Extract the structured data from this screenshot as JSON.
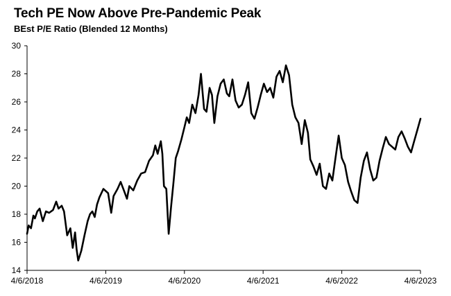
{
  "header": {
    "title": "Tech PE Now Above Pre-Pandemic Peak",
    "subtitle": "BEst P/E Ratio (Blended 12 Months)"
  },
  "chart_data": {
    "type": "line",
    "title": "Tech PE Now Above Pre-Pandemic Peak",
    "subtitle": "BEst P/E Ratio (Blended 12 Months)",
    "xlabel": "",
    "ylabel": "",
    "xlim": [
      2018.0,
      2023.0
    ],
    "ylim": [
      14,
      30
    ],
    "yticks": [
      14,
      16,
      18,
      20,
      22,
      24,
      26,
      28,
      30
    ],
    "xticks": [
      {
        "value": 2018.0,
        "label": "4/6/2018"
      },
      {
        "value": 2019.0,
        "label": "4/6/2019"
      },
      {
        "value": 2020.0,
        "label": "4/6/2020"
      },
      {
        "value": 2021.0,
        "label": "4/6/2021"
      },
      {
        "value": 2022.0,
        "label": "4/6/2022"
      },
      {
        "value": 2023.0,
        "label": "4/6/2023"
      }
    ],
    "grid": false,
    "legend": "none",
    "colors": {
      "line": "#000000",
      "axis": "#000000"
    },
    "series": [
      {
        "color": "#000000",
        "points": [
          [
            2018.0,
            16.6
          ],
          [
            2018.02,
            17.2
          ],
          [
            2018.05,
            17.0
          ],
          [
            2018.08,
            17.9
          ],
          [
            2018.1,
            17.7
          ],
          [
            2018.13,
            18.2
          ],
          [
            2018.16,
            18.4
          ],
          [
            2018.2,
            17.5
          ],
          [
            2018.24,
            18.2
          ],
          [
            2018.28,
            18.1
          ],
          [
            2018.33,
            18.3
          ],
          [
            2018.37,
            18.9
          ],
          [
            2018.4,
            18.4
          ],
          [
            2018.44,
            18.6
          ],
          [
            2018.47,
            18.2
          ],
          [
            2018.51,
            16.5
          ],
          [
            2018.55,
            17.0
          ],
          [
            2018.58,
            15.6
          ],
          [
            2018.61,
            16.7
          ],
          [
            2018.63,
            15.5
          ],
          [
            2018.65,
            14.7
          ],
          [
            2018.69,
            15.4
          ],
          [
            2018.73,
            16.5
          ],
          [
            2018.77,
            17.5
          ],
          [
            2018.8,
            18.0
          ],
          [
            2018.83,
            18.2
          ],
          [
            2018.86,
            17.8
          ],
          [
            2018.89,
            18.7
          ],
          [
            2018.92,
            19.2
          ],
          [
            2018.97,
            19.8
          ],
          [
            2019.03,
            19.5
          ],
          [
            2019.07,
            18.1
          ],
          [
            2019.1,
            19.3
          ],
          [
            2019.15,
            19.8
          ],
          [
            2019.19,
            20.3
          ],
          [
            2019.23,
            19.7
          ],
          [
            2019.27,
            19.1
          ],
          [
            2019.3,
            20.0
          ],
          [
            2019.35,
            19.7
          ],
          [
            2019.4,
            20.4
          ],
          [
            2019.45,
            20.9
          ],
          [
            2019.5,
            21.0
          ],
          [
            2019.55,
            21.8
          ],
          [
            2019.6,
            22.2
          ],
          [
            2019.63,
            22.9
          ],
          [
            2019.66,
            22.3
          ],
          [
            2019.7,
            23.2
          ],
          [
            2019.72,
            22.3
          ],
          [
            2019.74,
            20.0
          ],
          [
            2019.77,
            19.8
          ],
          [
            2019.8,
            16.6
          ],
          [
            2019.83,
            18.5
          ],
          [
            2019.86,
            20.2
          ],
          [
            2019.89,
            22.0
          ],
          [
            2019.92,
            22.5
          ],
          [
            2019.96,
            23.3
          ],
          [
            2020.0,
            24.2
          ],
          [
            2020.03,
            24.9
          ],
          [
            2020.06,
            24.5
          ],
          [
            2020.1,
            25.8
          ],
          [
            2020.14,
            25.2
          ],
          [
            2020.18,
            26.5
          ],
          [
            2020.21,
            28.0
          ],
          [
            2020.25,
            25.5
          ],
          [
            2020.28,
            25.3
          ],
          [
            2020.32,
            27.0
          ],
          [
            2020.35,
            26.5
          ],
          [
            2020.38,
            24.5
          ],
          [
            2020.42,
            26.4
          ],
          [
            2020.46,
            27.3
          ],
          [
            2020.5,
            27.6
          ],
          [
            2020.54,
            26.6
          ],
          [
            2020.57,
            26.4
          ],
          [
            2020.61,
            27.6
          ],
          [
            2020.65,
            26.1
          ],
          [
            2020.69,
            25.6
          ],
          [
            2020.73,
            25.8
          ],
          [
            2020.77,
            26.5
          ],
          [
            2020.81,
            27.4
          ],
          [
            2020.85,
            25.2
          ],
          [
            2020.89,
            24.8
          ],
          [
            2020.93,
            25.6
          ],
          [
            2020.97,
            26.5
          ],
          [
            2021.01,
            27.3
          ],
          [
            2021.05,
            26.7
          ],
          [
            2021.09,
            27.0
          ],
          [
            2021.13,
            26.3
          ],
          [
            2021.17,
            27.8
          ],
          [
            2021.21,
            28.2
          ],
          [
            2021.25,
            27.4
          ],
          [
            2021.29,
            28.6
          ],
          [
            2021.33,
            27.9
          ],
          [
            2021.37,
            25.8
          ],
          [
            2021.41,
            24.9
          ],
          [
            2021.45,
            24.5
          ],
          [
            2021.49,
            23.0
          ],
          [
            2021.53,
            24.7
          ],
          [
            2021.57,
            23.8
          ],
          [
            2021.6,
            21.9
          ],
          [
            2021.64,
            21.4
          ],
          [
            2021.68,
            20.8
          ],
          [
            2021.72,
            21.6
          ],
          [
            2021.76,
            20.0
          ],
          [
            2021.8,
            19.8
          ],
          [
            2021.84,
            20.9
          ],
          [
            2021.88,
            20.4
          ],
          [
            2021.92,
            22.0
          ],
          [
            2021.96,
            23.6
          ],
          [
            2022.0,
            22.0
          ],
          [
            2022.04,
            21.5
          ],
          [
            2022.08,
            20.3
          ],
          [
            2022.12,
            19.6
          ],
          [
            2022.16,
            19.0
          ],
          [
            2022.2,
            18.8
          ],
          [
            2022.24,
            20.6
          ],
          [
            2022.28,
            21.8
          ],
          [
            2022.32,
            22.4
          ],
          [
            2022.36,
            21.2
          ],
          [
            2022.4,
            20.4
          ],
          [
            2022.44,
            20.6
          ],
          [
            2022.48,
            21.8
          ],
          [
            2022.52,
            22.7
          ],
          [
            2022.56,
            23.5
          ],
          [
            2022.6,
            23.0
          ],
          [
            2022.64,
            22.8
          ],
          [
            2022.68,
            22.6
          ],
          [
            2022.72,
            23.5
          ],
          [
            2022.76,
            23.9
          ],
          [
            2022.8,
            23.4
          ],
          [
            2022.84,
            22.8
          ],
          [
            2022.88,
            22.4
          ],
          [
            2022.92,
            23.2
          ],
          [
            2022.96,
            24.0
          ],
          [
            2023.0,
            24.8
          ]
        ]
      }
    ]
  }
}
